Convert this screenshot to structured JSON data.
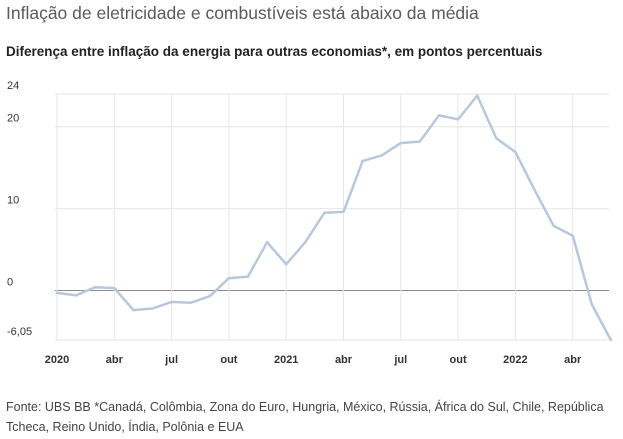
{
  "title": "Inflação de eletricidade e combustíveis está abaixo da média",
  "subtitle": "Diferença entre inflação da energia para outras economias*, em pontos percentuais",
  "source": "Fonte: UBS BB *Canadá, Colômbia, Zona do Euro, Hungria, México, Rússia, África do Sul, Chile, República Tcheca, Reino Unido, Índia, Polônia e EUA",
  "colors": {
    "line": "#b8c8da",
    "grid": "#e6e6e6",
    "zero": "#8c8c8c",
    "text": "#333333"
  },
  "chart_data": {
    "type": "line",
    "title": "Diferença entre inflação da energia para outras economias*, em pontos percentuais",
    "xlabel": "",
    "ylabel": "",
    "ylim": [
      -6.05,
      24
    ],
    "y_ticks": [
      {
        "value": 24,
        "label": "24"
      },
      {
        "value": 20,
        "label": "20"
      },
      {
        "value": 10,
        "label": "10"
      },
      {
        "value": 0,
        "label": "0"
      },
      {
        "value": -6.05,
        "label": "-6,05"
      }
    ],
    "x_ticks": [
      {
        "x": "2020-01",
        "label": "2020"
      },
      {
        "x": "2020-04",
        "label": "abr"
      },
      {
        "x": "2020-07",
        "label": "jul"
      },
      {
        "x": "2020-10",
        "label": "out"
      },
      {
        "x": "2021-01",
        "label": "2021"
      },
      {
        "x": "2021-04",
        "label": "abr"
      },
      {
        "x": "2021-07",
        "label": "jul"
      },
      {
        "x": "2021-10",
        "label": "out"
      },
      {
        "x": "2022-01",
        "label": "2022"
      },
      {
        "x": "2022-04",
        "label": "abr"
      }
    ],
    "grid": true,
    "series": [
      {
        "x": [
          "2020-01",
          "2020-02",
          "2020-03",
          "2020-04",
          "2020-05",
          "2020-06",
          "2020-07",
          "2020-08",
          "2020-09",
          "2020-10",
          "2020-11",
          "2020-12",
          "2021-01",
          "2021-02",
          "2021-03",
          "2021-04",
          "2021-05",
          "2021-06",
          "2021-07",
          "2021-08",
          "2021-09",
          "2021-10",
          "2021-11",
          "2021-12",
          "2022-01",
          "2022-02",
          "2022-03",
          "2022-04",
          "2022-05",
          "2022-06"
        ],
        "values": [
          -0.3,
          -0.6,
          0.4,
          0.3,
          -2.4,
          -2.2,
          -1.4,
          -1.5,
          -0.7,
          1.5,
          1.7,
          5.9,
          3.2,
          5.9,
          9.5,
          9.6,
          15.8,
          16.5,
          18.0,
          18.2,
          21.4,
          20.9,
          23.8,
          18.6,
          16.9,
          12.3,
          7.9,
          6.7,
          -1.7,
          -6.05
        ]
      }
    ]
  }
}
